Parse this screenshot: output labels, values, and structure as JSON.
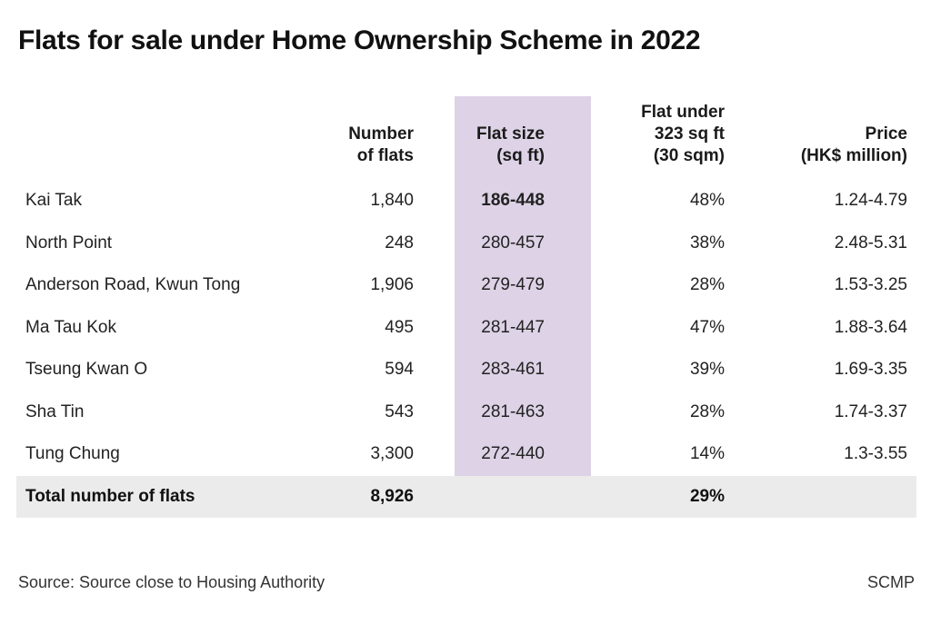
{
  "chart_data": {
    "type": "table",
    "title": "Flats for sale under Home Ownership Scheme in 2022",
    "columns": [
      "",
      "Number of flats",
      "Flat size (sq ft)",
      "Flat under 323 sq ft (30 sqm)",
      "Price (HK$ million)"
    ],
    "rows": [
      {
        "location": "Kai Tak",
        "flats": "1,840",
        "size": "186-448",
        "under": "48%",
        "price": "1.24-4.79"
      },
      {
        "location": "North Point",
        "flats": "248",
        "size": "280-457",
        "under": "38%",
        "price": "2.48-5.31"
      },
      {
        "location": "Anderson Road, Kwun Tong",
        "flats": "1,906",
        "size": "279-479",
        "under": "28%",
        "price": "1.53-3.25"
      },
      {
        "location": "Ma Tau Kok",
        "flats": "495",
        "size": "281-447",
        "under": "47%",
        "price": "1.88-3.64"
      },
      {
        "location": "Tseung Kwan O",
        "flats": "594",
        "size": "283-461",
        "under": "39%",
        "price": "1.69-3.35"
      },
      {
        "location": "Sha Tin",
        "flats": "543",
        "size": "281-463",
        "under": "28%",
        "price": "1.74-3.37"
      },
      {
        "location": "Tung Chung",
        "flats": "3,300",
        "size": "272-440",
        "under": "14%",
        "price": "1.3-3.55"
      }
    ],
    "total": {
      "label": "Total number of flats",
      "flats": "8,926",
      "under": "29%"
    },
    "highlight_color": "#ddd2e6",
    "total_row_color": "#ebebeb"
  },
  "headers": {
    "flats": [
      "Number",
      "of flats"
    ],
    "size": [
      "Flat size",
      "(sq ft)"
    ],
    "under": [
      "Flat under",
      "323 sq ft",
      "(30 sqm)"
    ],
    "price": [
      "Price",
      "(HK$ million)"
    ]
  },
  "footer": {
    "source": "Source: Source close to Housing Authority",
    "credit": "SCMP"
  }
}
